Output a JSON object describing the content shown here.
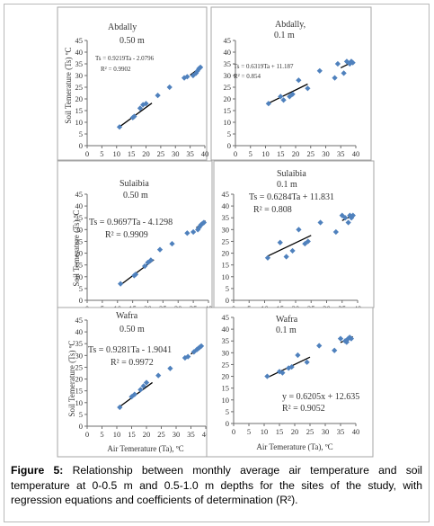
{
  "figure": {
    "caption_label": "Figure 5:",
    "caption_text": " Relationship between monthly average air temperature and soil temperature at 0-0.5 m and 0.5-1.0 m depths for the sites of the study, with regression equations and coefficients of determination (R²)."
  },
  "colors": {
    "point": "#4f81bd",
    "line": "#000000",
    "axis": "#6d6d6d",
    "panel_border": "#a6a6a6"
  },
  "chart_data": [
    {
      "type": "scatter",
      "title": "Abdally",
      "subtitle": "0.50 m",
      "ylabel": "Soil Temerature (Ts) ºC",
      "xlabel": "",
      "xlim": [
        0,
        40
      ],
      "ylim": [
        0,
        45
      ],
      "xticks": [
        0,
        5,
        10,
        15,
        20,
        25,
        30,
        35,
        40
      ],
      "yticks": [
        0,
        5,
        10,
        15,
        20,
        25,
        30,
        35,
        40,
        45
      ],
      "equation": "Ts = 0.9219Ta - 2.0796",
      "r2": "R² = 0.9902",
      "fit": {
        "slope": 0.9219,
        "intercept": -2.0796,
        "x_range": [
          11,
          22
        ]
      },
      "fit2": {
        "slope": 0.9219,
        "intercept": -2.0796,
        "x_range": [
          35,
          39
        ]
      },
      "points": [
        [
          11,
          8
        ],
        [
          15.5,
          12
        ],
        [
          16,
          12.5
        ],
        [
          18,
          16
        ],
        [
          19,
          17.5
        ],
        [
          20,
          18
        ],
        [
          24,
          21.5
        ],
        [
          28,
          25
        ],
        [
          33,
          29
        ],
        [
          34,
          29.5
        ],
        [
          36,
          30
        ],
        [
          37,
          31
        ],
        [
          37.5,
          32
        ],
        [
          38,
          33
        ],
        [
          38.5,
          33.5
        ]
      ]
    },
    {
      "type": "scatter",
      "title": "Abdally,",
      "subtitle": "0.1 m",
      "ylabel": "",
      "xlabel": "",
      "xlim": [
        0,
        40
      ],
      "ylim": [
        0,
        45
      ],
      "xticks": [
        0,
        5,
        10,
        15,
        20,
        25,
        30,
        35,
        40
      ],
      "yticks": [
        0,
        5,
        10,
        15,
        20,
        25,
        30,
        35,
        40,
        45
      ],
      "equation": "Ts = 0.6319Ta + 11.187",
      "r2": "R² = 0.854",
      "fit": {
        "slope": 0.6319,
        "intercept": 11.187,
        "x_range": [
          11,
          24
        ]
      },
      "fit2": {
        "slope": 0.6319,
        "intercept": 11.187,
        "x_range": [
          35,
          39
        ]
      },
      "points": [
        [
          11,
          18
        ],
        [
          15,
          21
        ],
        [
          16,
          19.5
        ],
        [
          18,
          21
        ],
        [
          19,
          22
        ],
        [
          21,
          28
        ],
        [
          24,
          24.5
        ],
        [
          28,
          32
        ],
        [
          33,
          29
        ],
        [
          34,
          35
        ],
        [
          36,
          31
        ],
        [
          37,
          36
        ],
        [
          38,
          35
        ],
        [
          38.5,
          36
        ],
        [
          39,
          35.5
        ]
      ]
    },
    {
      "type": "scatter",
      "title": "Sulaibia",
      "subtitle": "0.50 m",
      "ylabel": "Soil Temerature (Ts) ºC",
      "xlabel": "",
      "xlim": [
        0,
        40
      ],
      "ylim": [
        0,
        45
      ],
      "xticks": [
        0,
        5,
        10,
        15,
        20,
        25,
        30,
        35,
        40
      ],
      "yticks": [
        0,
        5,
        10,
        15,
        20,
        25,
        30,
        35,
        40,
        45
      ],
      "equation": "Ts = 0.9697Ta - 4.1298",
      "r2": "R² = 0.9909",
      "fit": {
        "slope": 0.9697,
        "intercept": -4.1298,
        "x_range": [
          11,
          22
        ]
      },
      "fit2": {
        "slope": 0.9697,
        "intercept": -4.1298,
        "x_range": [
          36,
          39
        ]
      },
      "points": [
        [
          11,
          7
        ],
        [
          15.5,
          10.5
        ],
        [
          16,
          11
        ],
        [
          19,
          14.5
        ],
        [
          20,
          16
        ],
        [
          21,
          17
        ],
        [
          24,
          21.5
        ],
        [
          28,
          24
        ],
        [
          33,
          28.5
        ],
        [
          35,
          29
        ],
        [
          36.5,
          30
        ],
        [
          37,
          31
        ],
        [
          37.5,
          32
        ],
        [
          38,
          32.5
        ],
        [
          38.5,
          33
        ]
      ]
    },
    {
      "type": "scatter",
      "title": "Sulaibia",
      "subtitle": "0.1 m",
      "ylabel": "",
      "xlabel": "",
      "xlim": [
        0,
        40
      ],
      "ylim": [
        0,
        45
      ],
      "xticks": [
        0,
        5,
        10,
        15,
        20,
        25,
        30,
        35,
        40
      ],
      "yticks": [
        0,
        5,
        10,
        15,
        20,
        25,
        30,
        35,
        40,
        45
      ],
      "equation": "Ts = 0.6284Ta + 11.831",
      "r2": "R² = 0.808",
      "fit": {
        "slope": 0.6284,
        "intercept": 11.831,
        "x_range": [
          11,
          25
        ]
      },
      "fit2": {
        "slope": 0.6284,
        "intercept": 11.831,
        "x_range": [
          35,
          39
        ]
      },
      "points": [
        [
          11,
          18
        ],
        [
          15,
          24.5
        ],
        [
          17,
          18.5
        ],
        [
          19,
          21
        ],
        [
          21,
          30
        ],
        [
          23,
          24
        ],
        [
          24,
          25
        ],
        [
          28,
          33
        ],
        [
          33,
          29
        ],
        [
          35,
          36
        ],
        [
          36,
          35
        ],
        [
          37,
          33
        ],
        [
          37.5,
          36
        ],
        [
          38,
          35
        ],
        [
          38.5,
          36
        ]
      ]
    },
    {
      "type": "scatter",
      "title": "Wafra",
      "subtitle": "0.50 m",
      "ylabel": "Soil Temerature (Ts) ºC",
      "xlabel": "Air Temerature (Ta), ºC",
      "xlim": [
        0,
        40
      ],
      "ylim": [
        0,
        45
      ],
      "xticks": [
        0,
        5,
        10,
        15,
        20,
        25,
        30,
        35,
        40
      ],
      "yticks": [
        0,
        5,
        10,
        15,
        20,
        25,
        30,
        35,
        40,
        45
      ],
      "equation": "Ts = 0.9281Ta - 1.9041",
      "r2": "R² = 0.9972",
      "fit": {
        "slope": 0.9281,
        "intercept": -1.9041,
        "x_range": [
          11,
          22
        ]
      },
      "fit2": {
        "slope": 0.9281,
        "intercept": -1.9041,
        "x_range": [
          35,
          39
        ]
      },
      "points": [
        [
          11,
          8
        ],
        [
          15,
          12.5
        ],
        [
          16,
          13.5
        ],
        [
          18,
          15.5
        ],
        [
          19,
          17
        ],
        [
          20,
          18.5
        ],
        [
          24,
          21.5
        ],
        [
          28,
          24.5
        ],
        [
          33,
          29
        ],
        [
          34,
          29.5
        ],
        [
          36,
          31.5
        ],
        [
          37,
          32.5
        ],
        [
          37.5,
          33
        ],
        [
          38,
          33.5
        ],
        [
          38.5,
          34
        ]
      ]
    },
    {
      "type": "scatter",
      "title": "Wafra",
      "subtitle": "0.1 m",
      "ylabel": "",
      "xlabel": "Air Temerature (Ta), ºC",
      "xlim": [
        0,
        40
      ],
      "ylim": [
        0,
        45
      ],
      "xticks": [
        0,
        5,
        10,
        15,
        20,
        25,
        30,
        35,
        40
      ],
      "yticks": [
        0,
        5,
        10,
        15,
        20,
        25,
        30,
        35,
        40,
        45
      ],
      "equation": "y = 0.6205x + 12.635",
      "r2": "R² = 0.9052",
      "fit": {
        "slope": 0.6205,
        "intercept": 12.635,
        "x_range": [
          11,
          25
        ]
      },
      "fit2": {
        "slope": 0.6205,
        "intercept": 12.635,
        "x_range": [
          35,
          39
        ]
      },
      "points": [
        [
          11,
          20
        ],
        [
          15,
          22
        ],
        [
          16,
          21.5
        ],
        [
          18,
          23.5
        ],
        [
          19,
          24
        ],
        [
          21,
          29
        ],
        [
          24,
          26
        ],
        [
          28,
          33
        ],
        [
          33,
          31
        ],
        [
          35,
          36
        ],
        [
          36.5,
          35
        ],
        [
          37,
          34.5
        ],
        [
          37.5,
          36
        ],
        [
          38,
          36.5
        ],
        [
          38.5,
          36
        ]
      ]
    }
  ]
}
